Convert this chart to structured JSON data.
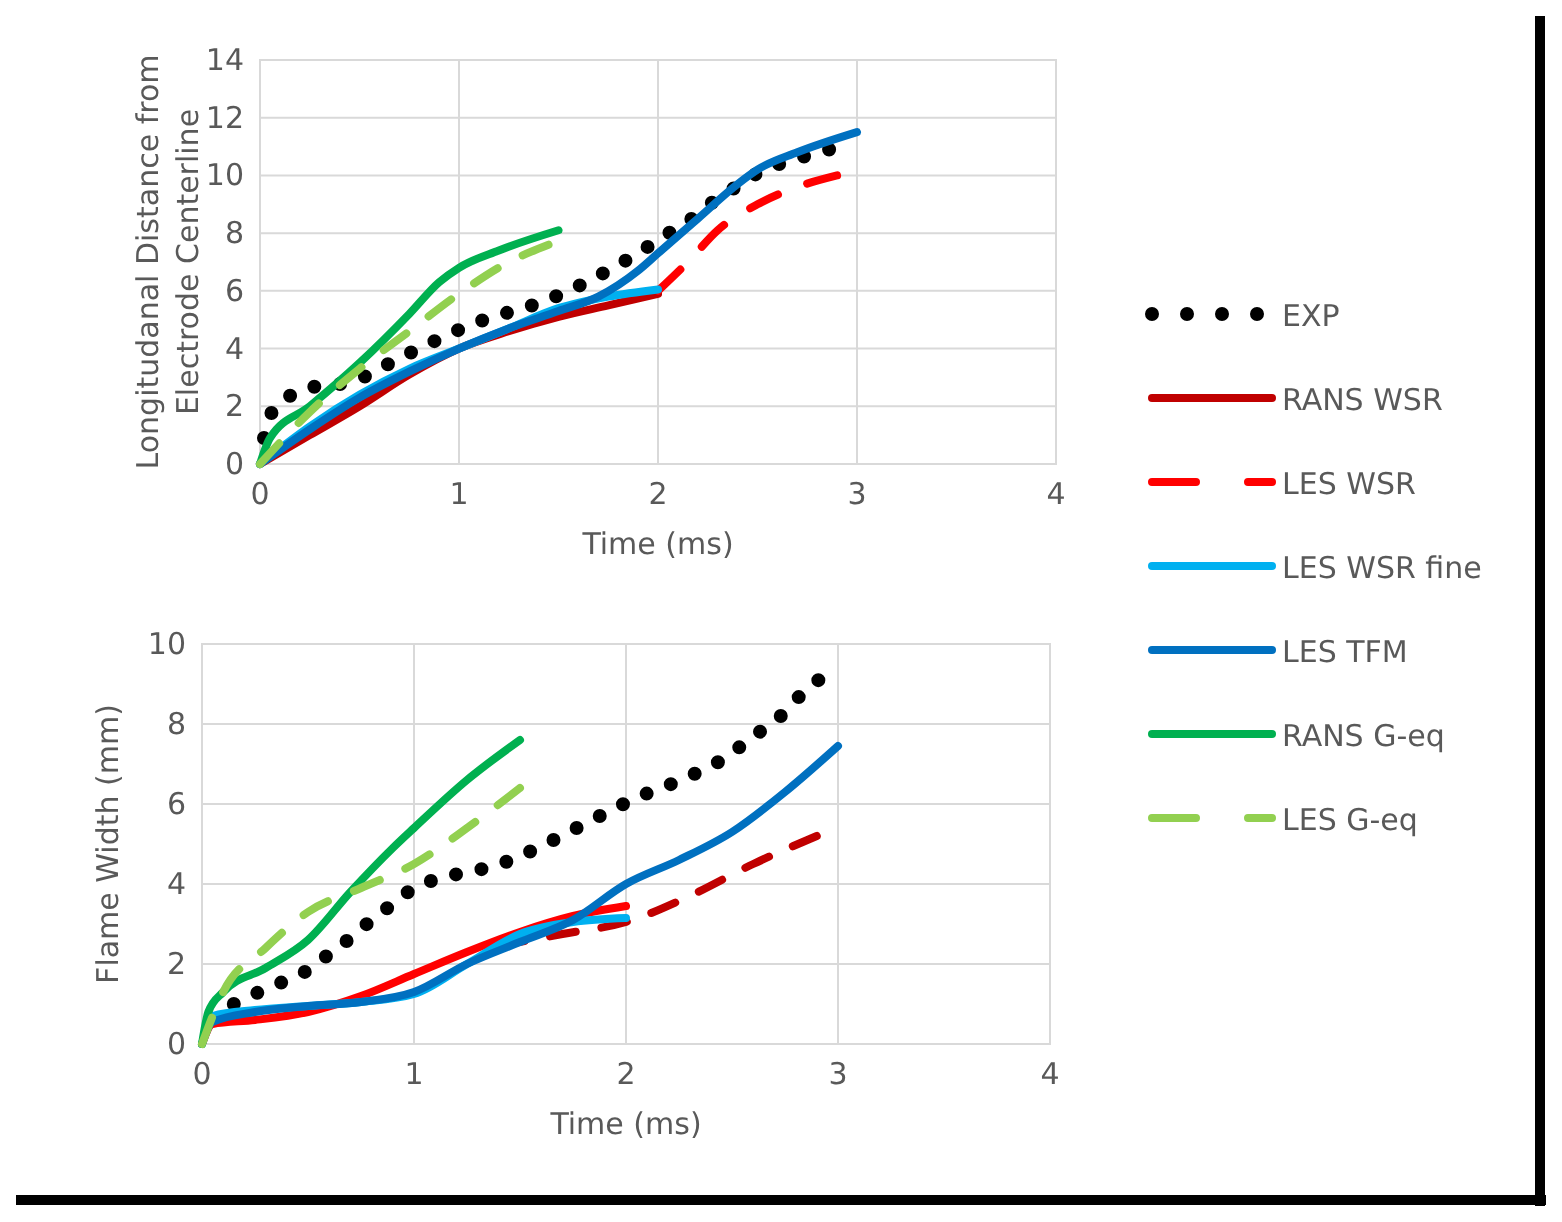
{
  "chart_data": [
    {
      "type": "line",
      "ylabel": "Longitudanal Distance from Electrode Centerline",
      "xlabel": "Time (ms)",
      "xlim": [
        0,
        4
      ],
      "xticks": [
        0,
        1,
        2,
        3,
        4
      ],
      "ylim": [
        0,
        14
      ],
      "yticks": [
        0,
        2,
        4,
        6,
        8,
        10,
        12,
        14
      ],
      "grid": true,
      "legend": "right",
      "series": [
        {
          "name": "EXP",
          "color": "#000000",
          "line_style": "dotted",
          "x": [
            0.02,
            0.06,
            0.16,
            0.29,
            0.43,
            0.55,
            0.68,
            0.8,
            0.92,
            1.05,
            1.17,
            1.3,
            1.43,
            1.55,
            1.68,
            1.8,
            1.92,
            2.03,
            2.15,
            2.26,
            2.37,
            2.48,
            2.61,
            2.73,
            2.86
          ],
          "values": [
            0.9,
            1.8,
            2.4,
            2.7,
            2.8,
            3.1,
            3.6,
            4.0,
            4.4,
            4.8,
            5.1,
            5.35,
            5.65,
            6.0,
            6.45,
            6.9,
            7.4,
            7.9,
            8.4,
            9.0,
            9.5,
            10.0,
            10.4,
            10.65,
            10.9
          ]
        },
        {
          "name": "RANS WSR",
          "color": "#c00000",
          "line_style": "solid",
          "x": [
            0,
            0.25,
            0.5,
            0.75,
            1,
            1.25,
            1.5,
            1.75,
            2
          ],
          "values": [
            0,
            1.0,
            2.0,
            3.1,
            4.0,
            4.6,
            5.1,
            5.5,
            5.9
          ]
        },
        {
          "name": "LES WSR",
          "color": "#ff0000",
          "line_style": "dashed",
          "x": [
            2,
            2.15,
            2.3,
            2.5,
            2.7,
            2.9
          ],
          "values": [
            6.0,
            7.0,
            8.1,
            9.0,
            9.6,
            10.0
          ]
        },
        {
          "name": "LES WSR fine",
          "color": "#00b0f0",
          "line_style": "solid",
          "x": [
            0,
            0.25,
            0.5,
            0.75,
            1,
            1.25,
            1.5,
            1.75,
            2
          ],
          "values": [
            0,
            1.3,
            2.4,
            3.3,
            4.0,
            4.7,
            5.4,
            5.8,
            6.05
          ]
        },
        {
          "name": "LES TFM",
          "color": "#0070c0",
          "line_style": "solid",
          "x": [
            0,
            0.25,
            0.5,
            0.75,
            1,
            1.25,
            1.5,
            1.7,
            1.9,
            2,
            2.2,
            2.4,
            2.5,
            2.7,
            3
          ],
          "values": [
            0,
            1.2,
            2.3,
            3.2,
            4.0,
            4.7,
            5.3,
            5.8,
            6.7,
            7.3,
            8.5,
            9.7,
            10.2,
            10.8,
            11.5
          ]
        },
        {
          "name": "RANS G-eq",
          "color": "#00b050",
          "line_style": "solid",
          "x": [
            0,
            0.05,
            0.25,
            0.5,
            0.75,
            0.9,
            1,
            1.2,
            1.5
          ],
          "values": [
            0,
            0.9,
            2.0,
            3.5,
            5.2,
            6.3,
            6.8,
            7.4,
            8.1
          ]
        },
        {
          "name": "LES G-eq",
          "color": "#92d050",
          "line_style": "dashed",
          "x": [
            0,
            0.25,
            0.5,
            0.75,
            1,
            1.25,
            1.45
          ],
          "values": [
            0,
            1.8,
            3.3,
            4.6,
            5.9,
            7.0,
            7.6
          ]
        }
      ]
    },
    {
      "type": "line",
      "ylabel": "Flame Width (mm)",
      "xlabel": "Time (ms)",
      "xlim": [
        0,
        4
      ],
      "xticks": [
        0,
        1,
        2,
        3,
        4
      ],
      "ylim": [
        0,
        10
      ],
      "yticks": [
        0,
        2,
        4,
        6,
        8,
        10
      ],
      "grid": true,
      "series": [
        {
          "color": "#000000",
          "line_style": "dotted",
          "x": [
            0.15,
            0.27,
            0.38,
            0.5,
            0.6,
            0.7,
            0.8,
            0.9,
            1.0,
            1.13,
            1.25,
            1.38,
            1.5,
            1.62,
            1.73,
            1.84,
            1.95,
            2.07,
            2.19,
            2.3,
            2.42,
            2.53,
            2.63,
            2.73,
            2.82,
            2.92
          ],
          "values": [
            1.0,
            1.3,
            1.55,
            1.85,
            2.25,
            2.65,
            3.1,
            3.5,
            3.9,
            4.15,
            4.3,
            4.45,
            4.7,
            5.0,
            5.3,
            5.6,
            5.9,
            6.2,
            6.45,
            6.7,
            7.0,
            7.4,
            7.8,
            8.2,
            8.7,
            9.15
          ]
        },
        {
          "color": "#ff0000",
          "line_style": "solid",
          "x": [
            0,
            0.05,
            0.25,
            0.5,
            0.75,
            1,
            1.25,
            1.5,
            1.75,
            2
          ],
          "values": [
            0,
            0.5,
            0.6,
            0.8,
            1.2,
            1.75,
            2.3,
            2.8,
            3.2,
            3.45
          ]
        },
        {
          "color": "#c00000",
          "line_style": "dashed",
          "x": [
            1.4,
            1.7,
            2,
            2.3,
            2.6,
            2.9
          ],
          "values": [
            2.45,
            2.75,
            3.05,
            3.7,
            4.5,
            5.2
          ]
        },
        {
          "color": "#00b0f0",
          "line_style": "solid",
          "x": [
            0,
            0.05,
            0.25,
            0.5,
            0.75,
            1,
            1.25,
            1.5,
            1.75,
            2
          ],
          "values": [
            0,
            0.7,
            0.85,
            0.95,
            1.05,
            1.25,
            2.0,
            2.75,
            3.05,
            3.15
          ]
        },
        {
          "color": "#0070c0",
          "line_style": "solid",
          "x": [
            0,
            0.05,
            0.25,
            0.5,
            0.75,
            1,
            1.25,
            1.5,
            1.75,
            2,
            2.25,
            2.5,
            2.75,
            3
          ],
          "values": [
            0,
            0.55,
            0.8,
            0.95,
            1.05,
            1.3,
            2.0,
            2.55,
            3.1,
            4.0,
            4.6,
            5.3,
            6.3,
            7.45
          ]
        },
        {
          "color": "#00b050",
          "line_style": "solid",
          "x": [
            0,
            0.03,
            0.1,
            0.3,
            0.5,
            0.7,
            0.9,
            1.0,
            1.25,
            1.5
          ],
          "values": [
            0,
            0.8,
            1.3,
            1.9,
            2.6,
            3.8,
            4.9,
            5.4,
            6.6,
            7.6
          ]
        },
        {
          "color": "#92d050",
          "line_style": "dashed",
          "x": [
            0,
            0.1,
            0.3,
            0.5,
            0.75,
            1.0,
            1.25,
            1.5
          ],
          "values": [
            0,
            1.3,
            2.4,
            3.3,
            3.9,
            4.5,
            5.4,
            6.4
          ]
        }
      ]
    }
  ]
}
